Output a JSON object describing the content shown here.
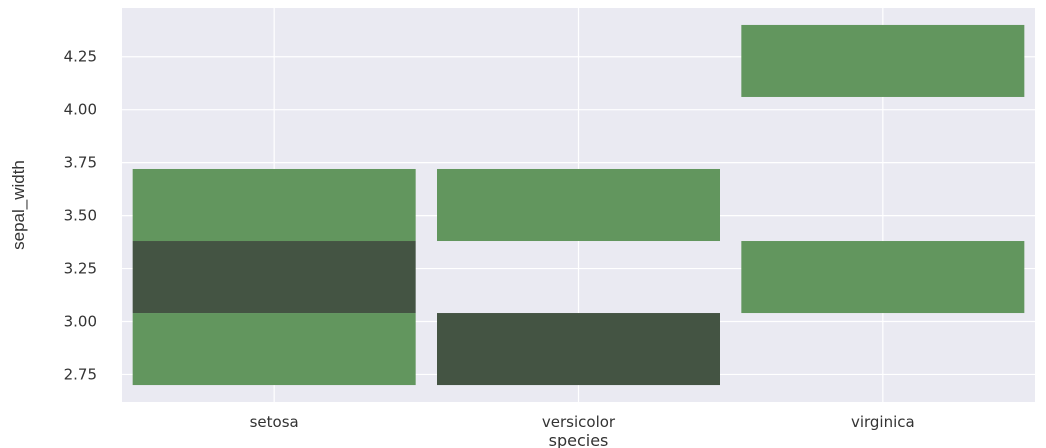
{
  "chart_data": {
    "type": "heatmap",
    "title": "",
    "xlabel": "species",
    "ylabel": "sepal_width",
    "categories": [
      "setosa",
      "versicolor",
      "virginica"
    ],
    "y_ticks": [
      "2.75",
      "3.00",
      "3.25",
      "3.50",
      "3.75",
      "4.00",
      "4.25"
    ],
    "ylim": [
      2.62,
      4.48
    ],
    "grid": true,
    "colors": {
      "background": "#EAEAF2",
      "grid": "#FFFFFF",
      "light_bin": "#62965E",
      "dark_bin": "#445443"
    },
    "bins": [
      {
        "category": "setosa",
        "y0": 2.7,
        "y1": 3.04,
        "level": "light"
      },
      {
        "category": "setosa",
        "y0": 3.04,
        "y1": 3.38,
        "level": "dark"
      },
      {
        "category": "setosa",
        "y0": 3.38,
        "y1": 3.72,
        "level": "light"
      },
      {
        "category": "versicolor",
        "y0": 2.7,
        "y1": 3.04,
        "level": "dark"
      },
      {
        "category": "versicolor",
        "y0": 3.38,
        "y1": 3.72,
        "level": "light"
      },
      {
        "category": "virginica",
        "y0": 3.04,
        "y1": 3.38,
        "level": "light"
      },
      {
        "category": "virginica",
        "y0": 4.06,
        "y1": 4.4,
        "level": "light"
      }
    ]
  }
}
